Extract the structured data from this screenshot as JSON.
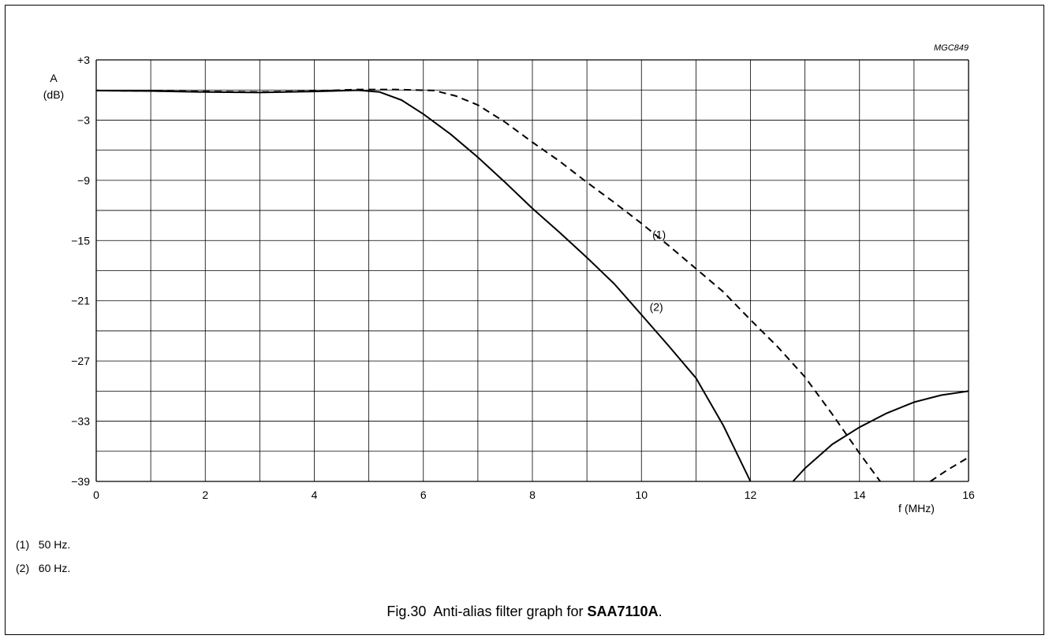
{
  "chart_data": {
    "type": "line",
    "figure_code": "MGC849",
    "ylabel_symbol": "A",
    "ylabel_unit": "(dB)",
    "xlabel": "f (MHz)",
    "xlim": [
      0,
      16
    ],
    "ylim": [
      -39,
      3
    ],
    "x_ticks": [
      {
        "v": 0,
        "label": "0"
      },
      {
        "v": 2,
        "label": "2"
      },
      {
        "v": 4,
        "label": "4"
      },
      {
        "v": 6,
        "label": "6"
      },
      {
        "v": 8,
        "label": "8"
      },
      {
        "v": 10,
        "label": "10"
      },
      {
        "v": 12,
        "label": "12"
      },
      {
        "v": 14,
        "label": "14"
      },
      {
        "v": 16,
        "label": "16"
      }
    ],
    "y_ticks": [
      {
        "v": 3,
        "label": "+3"
      },
      {
        "v": -3,
        "label": "−3"
      },
      {
        "v": -9,
        "label": "−9"
      },
      {
        "v": -15,
        "label": "−15"
      },
      {
        "v": -21,
        "label": "−21"
      },
      {
        "v": -27,
        "label": "−27"
      },
      {
        "v": -33,
        "label": "−33"
      },
      {
        "v": -39,
        "label": "−39"
      }
    ],
    "grid": {
      "x_step": 1,
      "y_step": 3
    },
    "series": [
      {
        "name": "(1)",
        "style": "dashed",
        "color": "#000000",
        "segments": [
          [
            [
              0,
              -0.05
            ],
            [
              1,
              -0.1
            ],
            [
              2,
              -0.15
            ],
            [
              3,
              -0.2
            ],
            [
              4,
              -0.1
            ],
            [
              4.8,
              0.05
            ],
            [
              5.5,
              0.05
            ],
            [
              6.2,
              -0.05
            ],
            [
              6.6,
              -0.6
            ],
            [
              7,
              -1.5
            ],
            [
              7.5,
              -3.2
            ],
            [
              8,
              -5.2
            ],
            [
              8.5,
              -7.1
            ],
            [
              9,
              -9.2
            ],
            [
              9.5,
              -11.2
            ],
            [
              10,
              -13.3
            ],
            [
              10.5,
              -15.5
            ],
            [
              11,
              -17.8
            ],
            [
              11.5,
              -20.1
            ],
            [
              12,
              -22.9
            ],
            [
              12.5,
              -25.6
            ],
            [
              13,
              -28.6
            ],
            [
              13.5,
              -32.3
            ],
            [
              14,
              -36.2
            ],
            [
              14.38,
              -39
            ]
          ],
          [
            [
              15.3,
              -39
            ],
            [
              15.6,
              -37.9
            ],
            [
              16,
              -36.6
            ]
          ]
        ],
        "label": {
          "text": "(1)",
          "at": [
            10.2,
            -14.8
          ]
        }
      },
      {
        "name": "(2)",
        "style": "solid",
        "color": "#000000",
        "segments": [
          [
            [
              0,
              -0.05
            ],
            [
              1,
              -0.1
            ],
            [
              2,
              -0.2
            ],
            [
              3,
              -0.25
            ],
            [
              4,
              -0.15
            ],
            [
              4.8,
              -0.02
            ],
            [
              5.2,
              -0.2
            ],
            [
              5.6,
              -1.0
            ],
            [
              6,
              -2.4
            ],
            [
              6.5,
              -4.4
            ],
            [
              7,
              -6.7
            ],
            [
              7.5,
              -9.2
            ],
            [
              8,
              -11.8
            ],
            [
              8.5,
              -14.2
            ],
            [
              9,
              -16.7
            ],
            [
              9.5,
              -19.3
            ],
            [
              10,
              -22.4
            ],
            [
              10.5,
              -25.5
            ],
            [
              11,
              -28.7
            ],
            [
              11.5,
              -33.4
            ],
            [
              12,
              -39
            ]
          ],
          [
            [
              12.78,
              -39
            ],
            [
              13,
              -37.7
            ],
            [
              13.5,
              -35.3
            ],
            [
              14,
              -33.6
            ],
            [
              14.5,
              -32.2
            ],
            [
              15,
              -31.1
            ],
            [
              15.5,
              -30.4
            ],
            [
              16,
              -30
            ]
          ]
        ],
        "label": {
          "text": "(2)",
          "at": [
            10.15,
            -22.0
          ]
        }
      }
    ]
  },
  "notes": [
    {
      "key": "(1)",
      "text": "50 Hz."
    },
    {
      "key": "(2)",
      "text": "60 Hz."
    }
  ],
  "caption": {
    "prefix": "Fig.30  Anti-alias filter graph for ",
    "bold": "SAA7110A",
    "suffix": "."
  }
}
